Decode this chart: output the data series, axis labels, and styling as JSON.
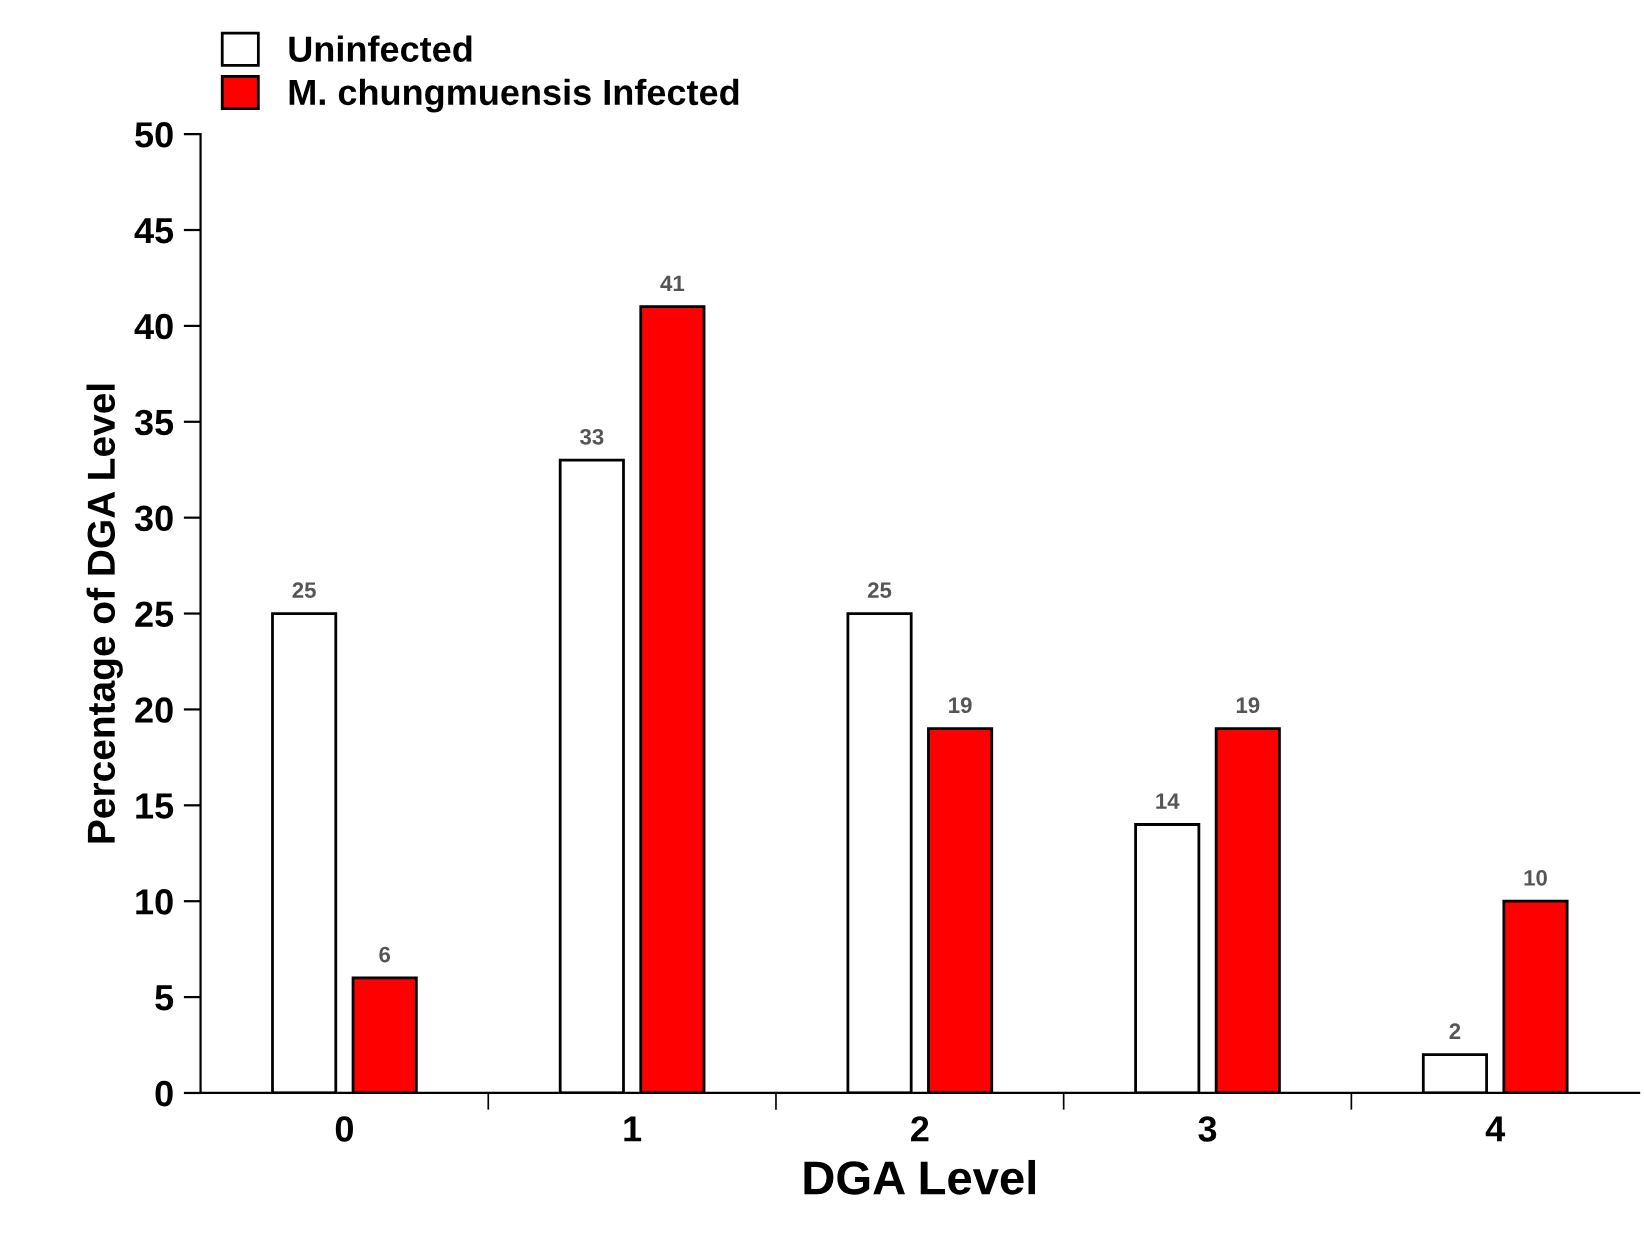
{
  "chart_data": {
    "type": "bar",
    "xlabel": "DGA Level",
    "ylabel": "Percentage of DGA Level",
    "categories": [
      "0",
      "1",
      "2",
      "3",
      "4"
    ],
    "series": [
      {
        "name": "Uninfected",
        "color": "#ffffff",
        "values": [
          25,
          33,
          25,
          14,
          2
        ]
      },
      {
        "name": "M. chungmuensis Infected",
        "color": "#ff0000",
        "values": [
          6,
          41,
          19,
          19,
          10
        ]
      }
    ],
    "ylim": [
      0,
      50
    ],
    "yticks": [
      0,
      5,
      10,
      15,
      20,
      25,
      30,
      35,
      40,
      45,
      50
    ],
    "data_labels": true,
    "legend": "top left",
    "grid": false
  }
}
